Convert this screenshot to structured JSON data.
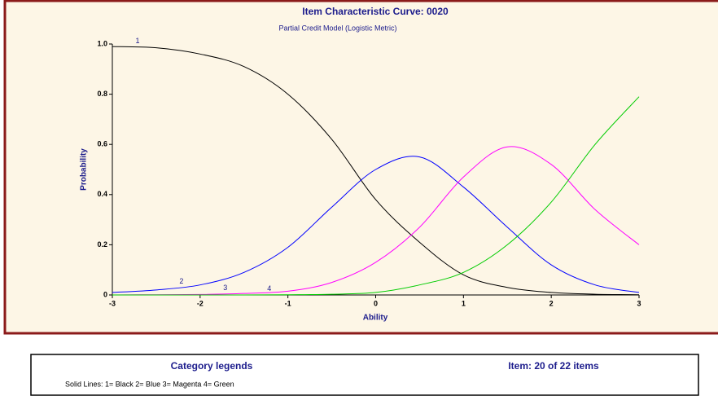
{
  "chart_data": {
    "type": "line",
    "title": "Item Characteristic Curve: 0020",
    "subtitle": "Partial Credit Model (Logistic Metric)",
    "x_label": "Ability",
    "y_label": "Probability",
    "x": [
      -3,
      -2.5,
      -2,
      -1.5,
      -1,
      -0.5,
      0,
      0.5,
      1,
      1.5,
      2,
      2.5,
      3
    ],
    "series": [
      {
        "label": "1",
        "color": "#000000",
        "values": [
          0.99,
          0.985,
          0.96,
          0.91,
          0.8,
          0.62,
          0.38,
          0.21,
          0.08,
          0.03,
          0.01,
          0.003,
          0.001
        ]
      },
      {
        "label": "2",
        "color": "#0000ff",
        "values": [
          0.01,
          0.02,
          0.04,
          0.09,
          0.19,
          0.35,
          0.5,
          0.55,
          0.43,
          0.27,
          0.12,
          0.04,
          0.01
        ]
      },
      {
        "label": "3",
        "color": "#ff00ff",
        "values": [
          0,
          0.001,
          0.002,
          0.006,
          0.015,
          0.05,
          0.13,
          0.27,
          0.47,
          0.59,
          0.52,
          0.34,
          0.2
        ]
      },
      {
        "label": "4",
        "color": "#00cc00",
        "values": [
          0,
          0,
          0,
          0,
          0.001,
          0.003,
          0.01,
          0.04,
          0.09,
          0.2,
          0.37,
          0.6,
          0.79
        ]
      }
    ],
    "xlim": [
      -3,
      3
    ],
    "xticks": [
      -3,
      -2,
      -1,
      0,
      1,
      2,
      3
    ],
    "ylim": [
      0,
      1
    ],
    "yticks": [
      0,
      0.2,
      0.4,
      0.6,
      0.8,
      {
        "value": 1,
        "label": "1.0"
      }
    ],
    "legend_panel": {
      "heading": "Category legends",
      "item": "Item: 20 of 22 items",
      "text": "Solid Lines: 1= Black 2= Blue 3= Magenta 4= Green"
    }
  }
}
